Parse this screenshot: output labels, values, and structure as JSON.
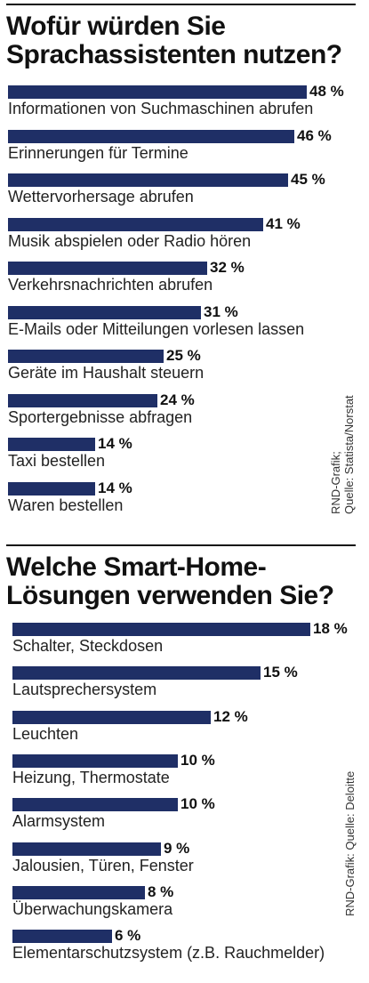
{
  "colors": {
    "bar": "#1f2f66",
    "text": "#222222"
  },
  "chart_data": [
    {
      "type": "bar",
      "title": "Wofür würden Sie Sprachassistenten nutzen?",
      "categories": [
        "Informationen von Suchmaschinen abrufen",
        "Erinnerungen für Termine",
        "Wettervorhersage abrufen",
        "Musik abspielen oder Radio hören",
        "Verkehrsnachrichten abrufen",
        "E-Mails oder Mitteilungen vorlesen lassen",
        "Geräte im Haushalt steuern",
        "Sportergebnisse abfragen",
        "Taxi bestellen",
        "Waren bestellen"
      ],
      "values": [
        48,
        46,
        45,
        41,
        32,
        31,
        25,
        24,
        14,
        14
      ],
      "value_labels": [
        "48 %",
        "46 %",
        "45 %",
        "41 %",
        "32 %",
        "31 %",
        "25 %",
        "24 %",
        "14 %",
        "14 %"
      ],
      "source_lines": [
        "RND-Grafik;",
        "Quelle: Statista/Norstat"
      ]
    },
    {
      "type": "bar",
      "title": "Welche Smart-Home-Lösungen verwenden Sie?",
      "categories": [
        "Schalter, Steckdosen",
        "Lautsprechersystem",
        "Leuchten",
        "Heizung, Thermostate",
        "Alarmsystem",
        "Jalousien, Türen, Fenster",
        "Überwachungskamera",
        "Elementarschutzsystem (z.B. Rauchmelder)"
      ],
      "values": [
        18,
        15,
        12,
        10,
        10,
        9,
        8,
        6
      ],
      "value_labels": [
        "18 %",
        "15 %",
        "12 %",
        "10 %",
        "10 %",
        "9 %",
        "8 %",
        "6 %"
      ],
      "source_lines": [
        "RND-Grafik: Quelle: Deloitte"
      ]
    }
  ]
}
